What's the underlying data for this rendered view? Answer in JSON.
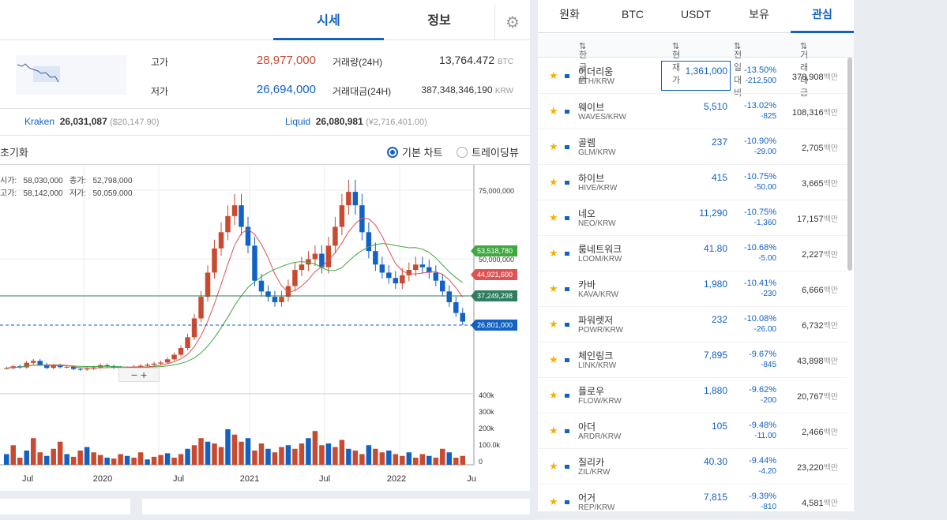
{
  "tabs": {
    "price": "시세",
    "info": "정보"
  },
  "stats": {
    "high_label": "고가",
    "high_value": "28,977,000",
    "low_label": "저가",
    "low_value": "26,694,000",
    "vol_label": "거래량(24H)",
    "vol_value": "13,764.472",
    "vol_unit": "BTC",
    "amt_label": "거래대금(24H)",
    "amt_value": "387,348,346,190",
    "amt_unit": "KRW"
  },
  "exchanges": [
    {
      "name": "Kraken",
      "price": "26,031,087",
      "usd": "($20,147.90)"
    },
    {
      "name": "Liquid",
      "price": "26,080,981",
      "usd": "(¥2,716,401.00)"
    }
  ],
  "chart_toolbar": {
    "reset": "초기화",
    "opt_basic": "기본 차트",
    "opt_tv": "트레이딩뷰"
  },
  "chart_info": {
    "open_l": "시가:",
    "open_v": "58,030,000",
    "high_l": "고가:",
    "high_v": "58,142,000",
    "close_l": "종가:",
    "close_v": "52,798,000",
    "low_l": "저가:",
    "low_v": "50,059,000"
  },
  "chart_data": {
    "type": "candlestick",
    "x_ticks": [
      "Jul",
      "2020",
      "Jul",
      "2021",
      "Jul",
      "2022",
      "Ju"
    ],
    "y_ticks": [
      "75,000,000",
      "50,000,000"
    ],
    "vol_ticks": [
      "400k",
      "300k",
      "200k",
      "100.0k",
      "0"
    ],
    "price_tags": [
      {
        "value": "53,518,780",
        "color": "#3fa83f"
      },
      {
        "value": "44,921,600",
        "color": "#e05151"
      },
      {
        "value": "37,249,298",
        "color": "#2e7d5e"
      },
      {
        "value": "26,801,000",
        "color": "#1261c4"
      }
    ],
    "close_series": [
      9.5,
      10.2,
      9.8,
      11.5,
      12.2,
      10.8,
      9.6,
      10.5,
      9.9,
      10.0,
      9.2,
      9.0,
      9.3,
      9.8,
      10.6,
      10.2,
      9.7,
      9.5,
      9.6,
      10.1,
      10.4,
      10.8,
      11.2,
      11.6,
      12.8,
      14.5,
      17.0,
      21.0,
      28.0,
      36.0,
      45.0,
      54.0,
      60.0,
      66.0,
      70.0,
      62.0,
      55.0,
      42.0,
      38.0,
      36.0,
      34.0,
      36.0,
      40.0,
      46.0,
      48.0,
      50.0,
      52.0,
      47.0,
      55.0,
      62.0,
      70.0,
      75.0,
      70.0,
      60.0,
      53.0,
      48.0,
      45.0,
      43.0,
      41.0,
      44.0,
      46.0,
      48.0,
      47.0,
      45.0,
      42.0,
      38.0,
      34.0,
      30.0,
      26.8
    ],
    "volume_series": [
      60,
      110,
      40,
      80,
      150,
      70,
      50,
      90,
      130,
      60,
      45,
      80,
      100,
      70,
      55,
      40,
      35,
      60,
      50,
      40,
      70,
      30,
      45,
      55,
      65,
      40,
      60,
      90,
      110,
      150,
      130,
      120,
      100,
      200,
      170,
      130,
      150,
      80,
      120,
      90,
      70,
      100,
      110,
      90,
      120,
      150,
      190,
      110,
      120,
      100,
      140,
      90,
      80,
      60,
      110,
      90,
      70,
      80,
      60,
      50,
      70,
      40,
      60,
      50,
      40,
      90,
      70,
      40,
      50
    ]
  },
  "right_tabs": [
    "원화",
    "BTC",
    "USDT",
    "보유",
    "관심"
  ],
  "right_header": {
    "name": "한글명",
    "price": "현재가",
    "change": "전일대비",
    "volume": "거래대금"
  },
  "volume_unit": "백만",
  "coins": [
    {
      "name": "이더리움",
      "code": "ETH/KRW",
      "price": "1,361,000",
      "pct": "-13.50%",
      "chg": "-212,500",
      "vol": "378,908"
    },
    {
      "name": "웨이브",
      "code": "WAVES/KRW",
      "price": "5,510",
      "pct": "-13.02%",
      "chg": "-825",
      "vol": "108,316"
    },
    {
      "name": "골렘",
      "code": "GLM/KRW",
      "price": "237",
      "pct": "-10.90%",
      "chg": "-29.00",
      "vol": "2,705"
    },
    {
      "name": "하이브",
      "code": "HIVE/KRW",
      "price": "415",
      "pct": "-10.75%",
      "chg": "-50.00",
      "vol": "3,665"
    },
    {
      "name": "네오",
      "code": "NEO/KRW",
      "price": "11,290",
      "pct": "-10.75%",
      "chg": "-1,360",
      "vol": "17,157"
    },
    {
      "name": "룸네트워크",
      "code": "LOOM/KRW",
      "price": "41.80",
      "pct": "-10.68%",
      "chg": "-5.00",
      "vol": "2,227"
    },
    {
      "name": "카바",
      "code": "KAVA/KRW",
      "price": "1,980",
      "pct": "-10.41%",
      "chg": "-230",
      "vol": "6,666"
    },
    {
      "name": "파워렛저",
      "code": "POWR/KRW",
      "price": "232",
      "pct": "-10.08%",
      "chg": "-26.00",
      "vol": "6,732"
    },
    {
      "name": "체인링크",
      "code": "LINK/KRW",
      "price": "7,895",
      "pct": "-9.67%",
      "chg": "-845",
      "vol": "43,898"
    },
    {
      "name": "플로우",
      "code": "FLOW/KRW",
      "price": "1,880",
      "pct": "-9.62%",
      "chg": "-200",
      "vol": "20,767"
    },
    {
      "name": "아더",
      "code": "ARDR/KRW",
      "price": "105",
      "pct": "-9.48%",
      "chg": "-11.00",
      "vol": "2,466"
    },
    {
      "name": "질리카",
      "code": "ZIL/KRW",
      "price": "40.30",
      "pct": "-9.44%",
      "chg": "-4.20",
      "vol": "23,220"
    },
    {
      "name": "어거",
      "code": "REP/KRW",
      "price": "7,815",
      "pct": "-9.39%",
      "chg": "-810",
      "vol": "4,581"
    }
  ]
}
